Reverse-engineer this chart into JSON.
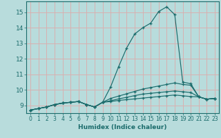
{
  "xlabel": "Humidex (Indice chaleur)",
  "ylabel": "",
  "bg_color": "#b8dcdc",
  "grid_color": "#d8b0b0",
  "line_color": "#1a6b6b",
  "xlim": [
    -0.5,
    23.5
  ],
  "ylim": [
    8.5,
    15.7
  ],
  "xticks": [
    0,
    1,
    2,
    3,
    4,
    5,
    6,
    7,
    8,
    9,
    10,
    11,
    12,
    13,
    14,
    15,
    16,
    17,
    18,
    19,
    20,
    21,
    22,
    23
  ],
  "yticks": [
    9,
    10,
    11,
    12,
    13,
    14,
    15
  ],
  "series": [
    {
      "x": [
        0,
        1,
        2,
        3,
        4,
        5,
        6,
        7,
        8,
        9,
        10,
        11,
        12,
        13,
        14,
        15,
        16,
        17,
        18,
        19,
        20,
        21,
        22,
        23
      ],
      "y": [
        8.7,
        8.8,
        8.9,
        9.05,
        9.15,
        9.2,
        9.25,
        9.05,
        8.9,
        9.2,
        10.2,
        11.5,
        12.7,
        13.6,
        14.0,
        14.3,
        15.05,
        15.35,
        14.85,
        10.5,
        10.4,
        9.55,
        9.4,
        9.45
      ]
    },
    {
      "x": [
        0,
        1,
        2,
        3,
        4,
        5,
        6,
        7,
        8,
        9,
        10,
        11,
        12,
        13,
        14,
        15,
        16,
        17,
        18,
        19,
        20,
        21,
        22,
        23
      ],
      "y": [
        8.7,
        8.8,
        8.9,
        9.05,
        9.15,
        9.2,
        9.25,
        9.05,
        8.9,
        9.2,
        9.45,
        9.6,
        9.75,
        9.9,
        10.05,
        10.15,
        10.25,
        10.35,
        10.45,
        10.35,
        10.3,
        9.55,
        9.4,
        9.45
      ]
    },
    {
      "x": [
        0,
        1,
        2,
        3,
        4,
        5,
        6,
        7,
        8,
        9,
        10,
        11,
        12,
        13,
        14,
        15,
        16,
        17,
        18,
        19,
        20,
        21,
        22,
        23
      ],
      "y": [
        8.7,
        8.8,
        8.9,
        9.05,
        9.15,
        9.2,
        9.25,
        9.05,
        8.9,
        9.2,
        9.3,
        9.42,
        9.52,
        9.63,
        9.73,
        9.78,
        9.83,
        9.88,
        9.93,
        9.88,
        9.83,
        9.55,
        9.4,
        9.45
      ]
    },
    {
      "x": [
        0,
        1,
        2,
        3,
        4,
        5,
        6,
        7,
        8,
        9,
        10,
        11,
        12,
        13,
        14,
        15,
        16,
        17,
        18,
        19,
        20,
        21,
        22,
        23
      ],
      "y": [
        8.7,
        8.8,
        8.9,
        9.05,
        9.15,
        9.2,
        9.25,
        9.05,
        8.9,
        9.2,
        9.25,
        9.32,
        9.37,
        9.42,
        9.47,
        9.52,
        9.57,
        9.62,
        9.67,
        9.62,
        9.57,
        9.55,
        9.4,
        9.45
      ]
    }
  ]
}
